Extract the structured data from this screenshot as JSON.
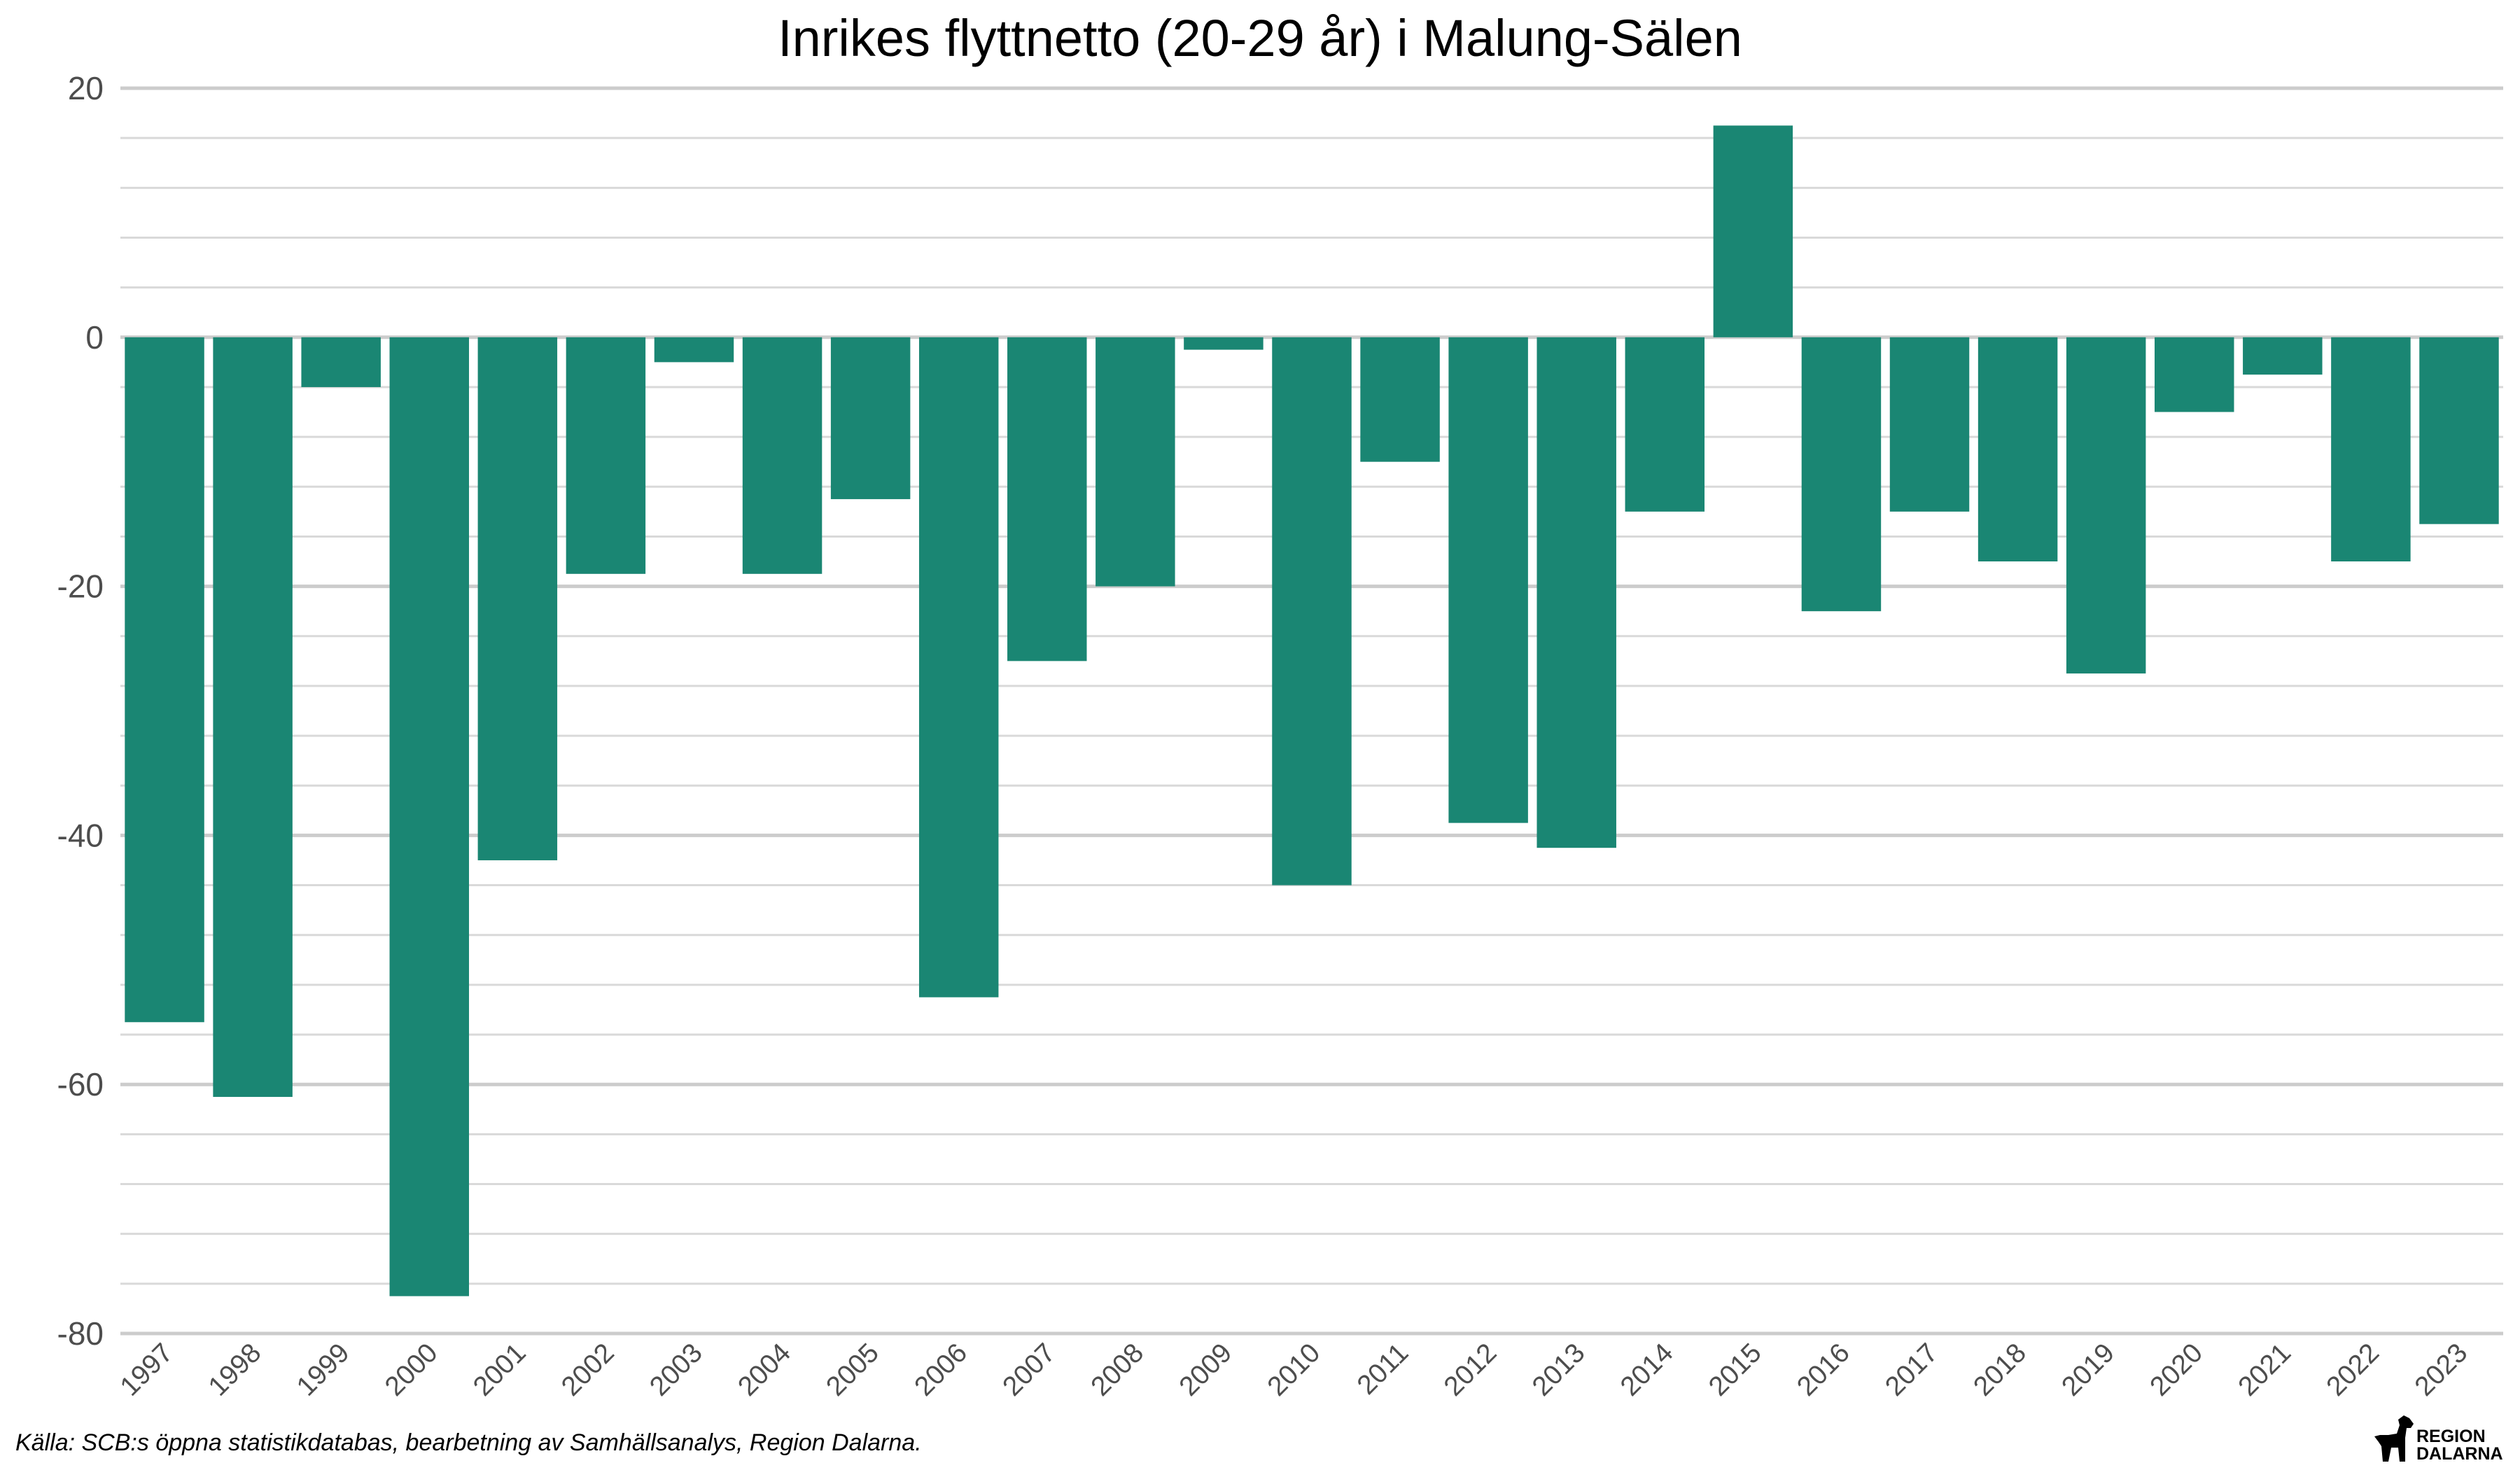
{
  "chart_data": {
    "type": "bar",
    "title": "Inrikes flyttnetto (20-29 år) i Malung-Sälen",
    "categories": [
      "1997",
      "1998",
      "1999",
      "2000",
      "2001",
      "2002",
      "2003",
      "2004",
      "2005",
      "2006",
      "2007",
      "2008",
      "2009",
      "2010",
      "2011",
      "2012",
      "2013",
      "2014",
      "2015",
      "2016",
      "2017",
      "2018",
      "2019",
      "2020",
      "2021",
      "2022",
      "2023"
    ],
    "values": [
      -55,
      -61,
      -4,
      -77,
      -42,
      -19,
      -2,
      -19,
      -13,
      -53,
      -26,
      -20,
      -1,
      -44,
      -10,
      -39,
      -41,
      -14,
      17,
      -22,
      -14,
      -18,
      -27,
      -6,
      -3,
      -18,
      -15
    ],
    "ylim": [
      -80,
      20
    ],
    "yticks": [
      20,
      0,
      -20,
      -40,
      -60,
      -80
    ],
    "ytick_labels": [
      "20",
      "0",
      "-20",
      "-40",
      "-60",
      "-80"
    ],
    "xlabel": "",
    "ylabel": "",
    "grid": true,
    "bar_color": "#1a8673"
  },
  "caption": "Källa: SCB:s öppna statistikdatabas, bearbetning av Samhällsanalys, Region Dalarna.",
  "logo": {
    "line1": "REGION",
    "line2": "DALARNA",
    "icon": "dala-horse-icon"
  }
}
